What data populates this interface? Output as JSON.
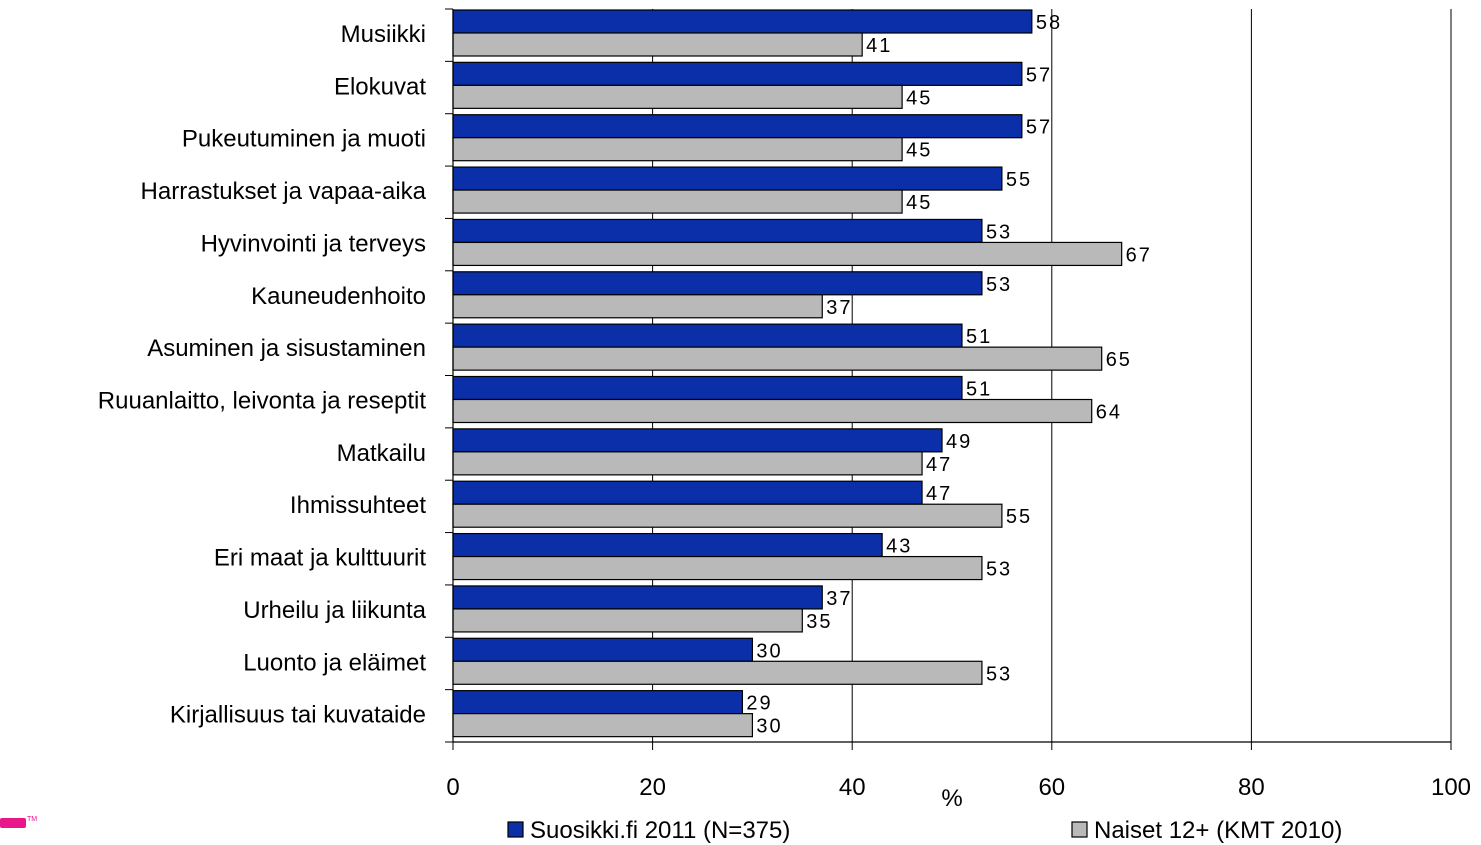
{
  "chart_data": {
    "type": "bar",
    "orientation": "horizontal",
    "categories": [
      "Musiikki",
      "Elokuvat",
      "Pukeutuminen ja muoti",
      "Harrastukset ja vapaa-aika",
      "Hyvinvointi ja terveys",
      "Kauneudenhoito",
      "Asuminen ja sisustaminen",
      "Ruuanlaitto, leivonta ja reseptit",
      "Matkailu",
      "Ihmissuhteet",
      "Eri maat ja kulttuurit",
      "Urheilu ja liikunta",
      "Luonto ja eläimet",
      "Kirjallisuus tai kuvataide"
    ],
    "series": [
      {
        "name": "Suosikki.fi 2011 (N=375)",
        "color": "#0a2fa8",
        "values": [
          58,
          57,
          57,
          55,
          53,
          53,
          51,
          51,
          49,
          47,
          43,
          37,
          30,
          29
        ]
      },
      {
        "name": "Naiset 12+ (KMT 2010)",
        "color": "#b9b9b9",
        "values": [
          41,
          45,
          45,
          45,
          67,
          37,
          65,
          64,
          47,
          55,
          53,
          35,
          53,
          30
        ]
      }
    ],
    "xlabel": "%",
    "xlim": [
      0,
      100
    ],
    "xticks": [
      "0",
      "20",
      "40",
      "60",
      "80",
      "100"
    ],
    "grid": "vertical",
    "legend": "bottom",
    "title": ""
  },
  "logo": {
    "color": "#e8168a",
    "text": "TM"
  }
}
